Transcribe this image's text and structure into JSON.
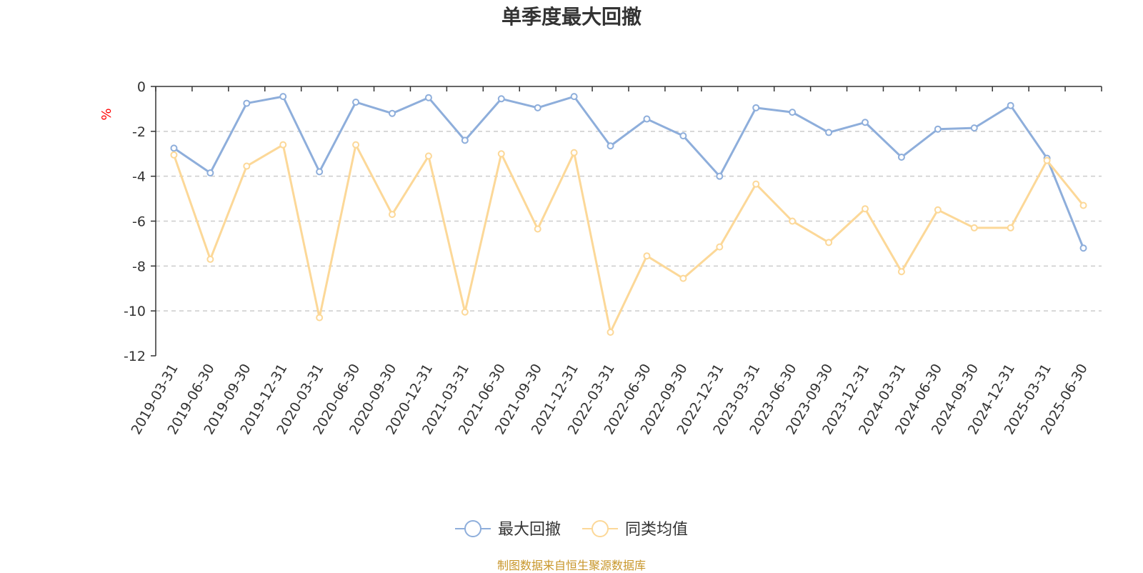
{
  "title": "单季度最大回撤",
  "source_note": "制图数据来自恒生聚源数据库",
  "colors": {
    "series_1": "#8eaedb",
    "series_2": "#fcd898",
    "unit_label": "#ff0000",
    "source_note": "#c8962a",
    "axis": "#333333",
    "grid": "#cccccc"
  },
  "chart_data": {
    "type": "line",
    "title": "单季度最大回撤",
    "ylabel": "%",
    "ylim": [
      -12,
      0
    ],
    "yticks": [
      0,
      -2,
      -4,
      -6,
      -8,
      -10,
      -12
    ],
    "grid": "horizontal dashed",
    "legend_position": "bottom-center",
    "categories": [
      "2019-03-31",
      "2019-06-30",
      "2019-09-30",
      "2019-12-31",
      "2020-03-31",
      "2020-06-30",
      "2020-09-30",
      "2020-12-31",
      "2021-03-31",
      "2021-06-30",
      "2021-09-30",
      "2021-12-31",
      "2022-03-31",
      "2022-06-30",
      "2022-09-30",
      "2022-12-31",
      "2023-03-31",
      "2023-06-30",
      "2023-09-30",
      "2023-12-31",
      "2024-03-31",
      "2024-06-30",
      "2024-09-30",
      "2024-12-31",
      "2025-03-31",
      "2025-06-30"
    ],
    "series": [
      {
        "name": "最大回撤",
        "color": "#8eaedb",
        "values": [
          -2.75,
          -3.85,
          -0.75,
          -0.45,
          -3.8,
          -0.7,
          -1.2,
          -0.5,
          -2.4,
          -0.55,
          -0.95,
          -0.45,
          -2.65,
          -1.45,
          -2.2,
          -4.0,
          -0.95,
          -1.15,
          -2.05,
          -1.6,
          -3.15,
          -1.9,
          -1.85,
          -0.85,
          -3.2,
          -7.2
        ]
      },
      {
        "name": "同类均值",
        "color": "#fcd898",
        "values": [
          -3.05,
          -7.7,
          -3.55,
          -2.6,
          -10.3,
          -2.6,
          -5.7,
          -3.1,
          -10.05,
          -3.0,
          -6.35,
          -2.95,
          -10.95,
          -7.55,
          -8.55,
          -7.15,
          -4.35,
          -6.0,
          -6.95,
          -5.45,
          -8.25,
          -5.5,
          -6.3,
          -6.3,
          -3.3,
          -5.3
        ]
      }
    ]
  }
}
